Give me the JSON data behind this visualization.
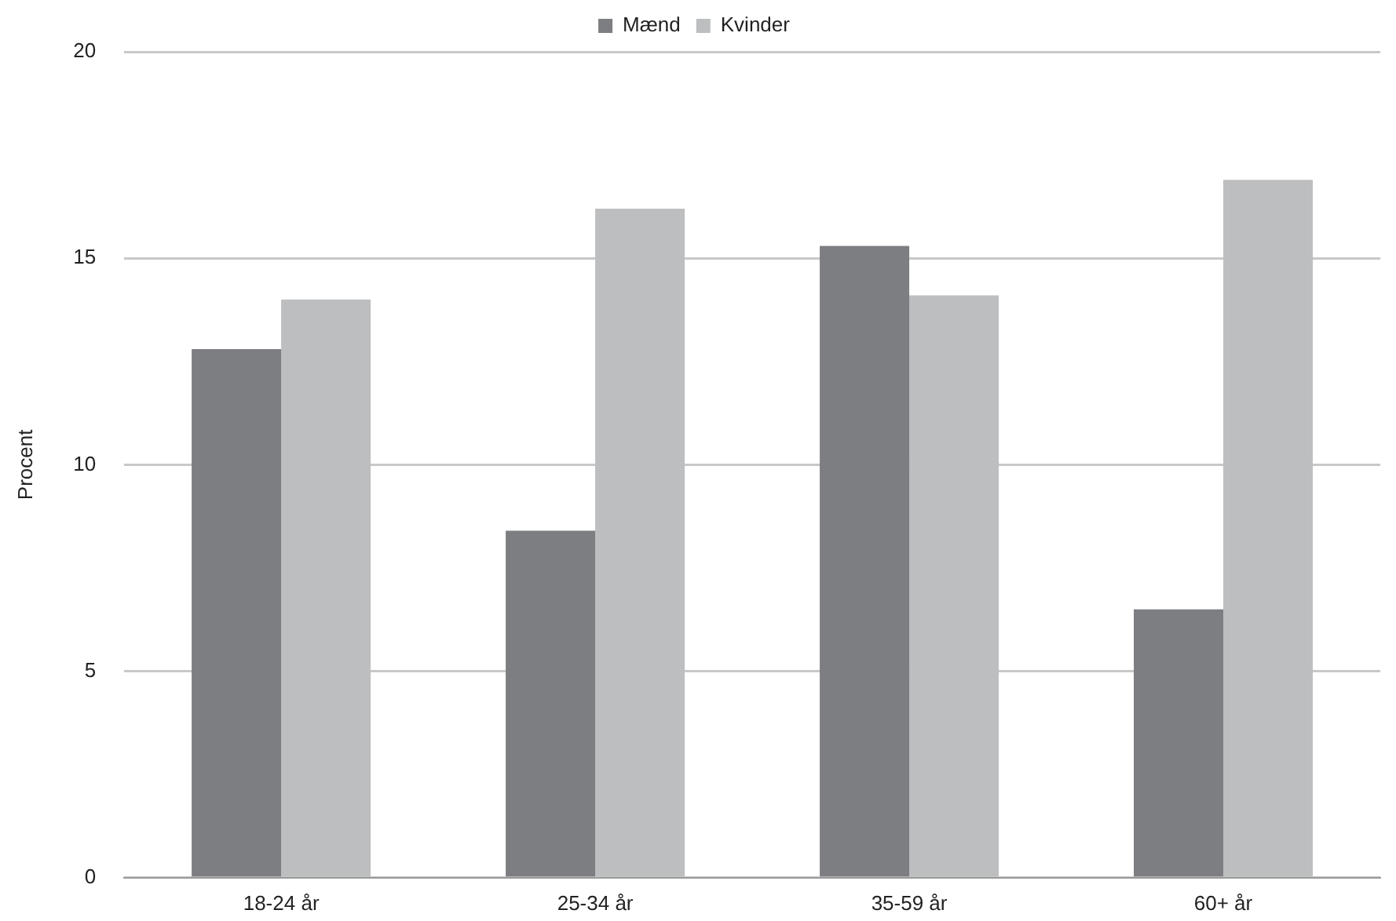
{
  "chart_data": {
    "type": "bar",
    "ylabel": "Procent",
    "categories": [
      "18-24 år",
      "25-34 år",
      "35-59 år",
      "60+ år"
    ],
    "series": [
      {
        "name": "Mænd",
        "color": "#7d7e82",
        "values": [
          12.8,
          8.4,
          15.3,
          6.5
        ]
      },
      {
        "name": "Kvinder",
        "color": "#bdbec0",
        "values": [
          14.0,
          16.2,
          14.1,
          16.9
        ]
      }
    ],
    "ylim": [
      0,
      20
    ],
    "yticks": [
      0,
      5,
      10,
      15,
      20
    ],
    "grid": "y",
    "legend": "top"
  }
}
